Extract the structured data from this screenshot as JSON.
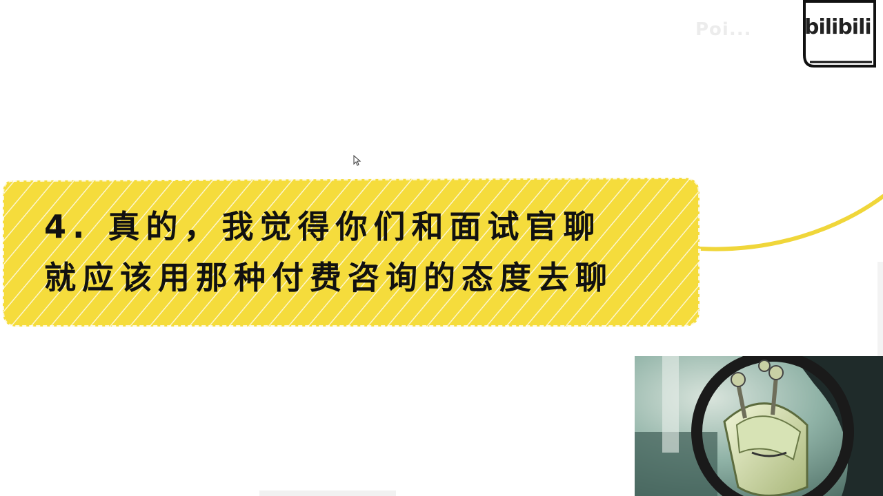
{
  "watermark": {
    "text": "Poi...",
    "logo_text": "bilibili",
    "logo_icon": "bilibili-logo-icon"
  },
  "slide": {
    "line1": "4. 真的，我觉得你们和面试官聊",
    "line2": "就应该用那种付费咨询的态度去聊",
    "banner_color": "#f5dc3c",
    "text_color": "#111111"
  },
  "webcam": {
    "icon": "robot-avatar-icon"
  },
  "cursor": {
    "icon": "mouse-pointer-icon"
  }
}
